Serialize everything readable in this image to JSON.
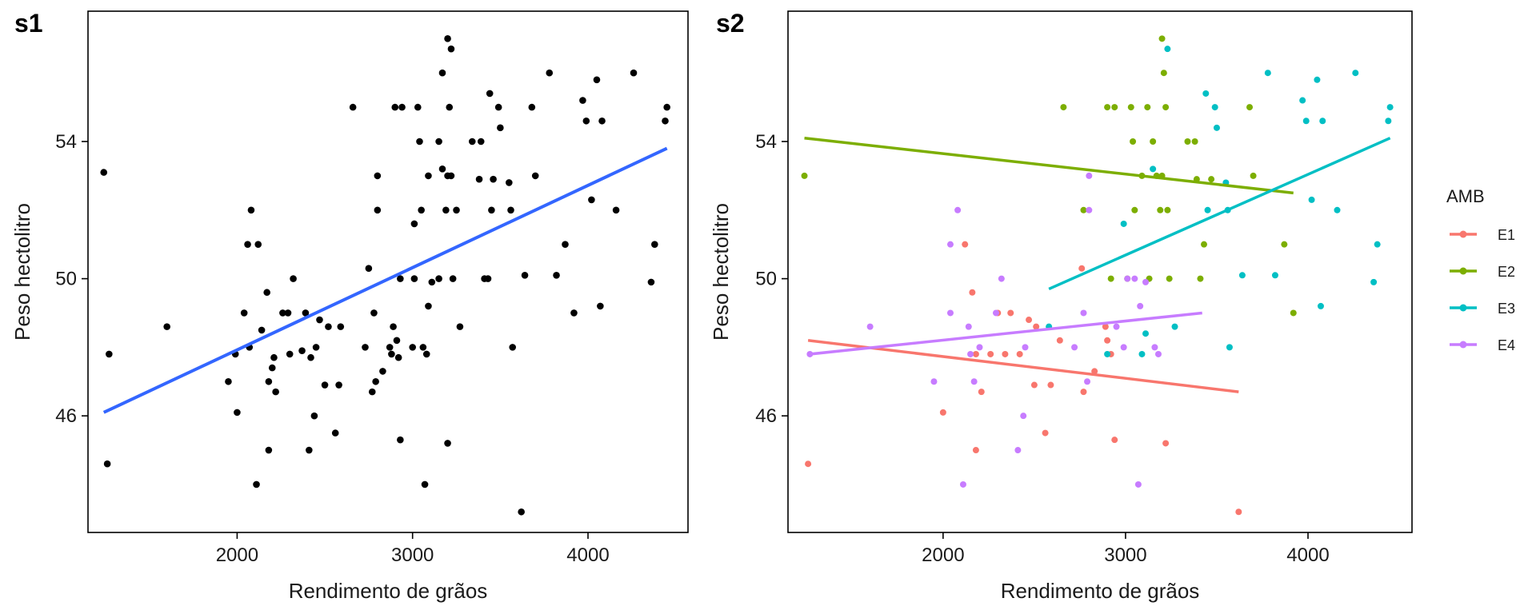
{
  "chart_data": [
    {
      "panel": "s1",
      "type": "scatter",
      "xlabel": "Rendimento de grãos",
      "ylabel": "Peso hectolitro",
      "xlim": [
        1150,
        4570
      ],
      "ylim": [
        42.6,
        57.8
      ],
      "x_ticks": [
        2000,
        3000,
        4000
      ],
      "y_ticks": [
        46,
        50,
        54
      ],
      "grid": false,
      "colors": {
        "points": "#000000",
        "line": "#3366ff"
      },
      "points": [
        [
          1240,
          53.1
        ],
        [
          1260,
          44.6
        ],
        [
          1270,
          47.8
        ],
        [
          1600,
          48.6
        ],
        [
          1950,
          47.0
        ],
        [
          1990,
          47.8
        ],
        [
          2000,
          46.1
        ],
        [
          2040,
          49.0
        ],
        [
          2060,
          51.0
        ],
        [
          2070,
          48.0
        ],
        [
          2080,
          52.0
        ],
        [
          2110,
          44.0
        ],
        [
          2120,
          51.0
        ],
        [
          2140,
          48.5
        ],
        [
          2170,
          49.6
        ],
        [
          2180,
          45.0
        ],
        [
          2180,
          47.0
        ],
        [
          2200,
          47.4
        ],
        [
          2210,
          47.7
        ],
        [
          2220,
          46.7
        ],
        [
          2260,
          49.0
        ],
        [
          2290,
          49.0
        ],
        [
          2300,
          47.8
        ],
        [
          2320,
          50.0
        ],
        [
          2370,
          47.9
        ],
        [
          2390,
          49.0
        ],
        [
          2410,
          45.0
        ],
        [
          2420,
          47.7
        ],
        [
          2440,
          46.0
        ],
        [
          2450,
          48.0
        ],
        [
          2470,
          48.8
        ],
        [
          2500,
          46.9
        ],
        [
          2520,
          48.6
        ],
        [
          2560,
          45.5
        ],
        [
          2580,
          46.9
        ],
        [
          2590,
          48.6
        ],
        [
          2660,
          55.0
        ],
        [
          2730,
          48.0
        ],
        [
          2750,
          50.3
        ],
        [
          2770,
          46.7
        ],
        [
          2780,
          49.0
        ],
        [
          2790,
          47.0
        ],
        [
          2800,
          52.0
        ],
        [
          2800,
          53.0
        ],
        [
          2830,
          47.3
        ],
        [
          2870,
          48.0
        ],
        [
          2880,
          47.8
        ],
        [
          2890,
          48.6
        ],
        [
          2900,
          55.0
        ],
        [
          2910,
          48.2
        ],
        [
          2920,
          47.7
        ],
        [
          2930,
          45.3
        ],
        [
          2930,
          50.0
        ],
        [
          2940,
          55.0
        ],
        [
          3000,
          48.0
        ],
        [
          3010,
          50.0
        ],
        [
          3010,
          51.6
        ],
        [
          3030,
          55.0
        ],
        [
          3040,
          54.0
        ],
        [
          3050,
          52.0
        ],
        [
          3060,
          48.0
        ],
        [
          3070,
          44.0
        ],
        [
          3080,
          47.8
        ],
        [
          3090,
          49.2
        ],
        [
          3090,
          53.0
        ],
        [
          3110,
          49.9
        ],
        [
          3150,
          50.0
        ],
        [
          3150,
          54.0
        ],
        [
          3170,
          53.2
        ],
        [
          3170,
          56.0
        ],
        [
          3190,
          52.0
        ],
        [
          3200,
          45.2
        ],
        [
          3200,
          53.0
        ],
        [
          3200,
          57.0
        ],
        [
          3210,
          55.0
        ],
        [
          3220,
          53.0
        ],
        [
          3220,
          56.7
        ],
        [
          3230,
          50.0
        ],
        [
          3250,
          52.0
        ],
        [
          3270,
          48.6
        ],
        [
          3340,
          54.0
        ],
        [
          3380,
          52.9
        ],
        [
          3390,
          54.0
        ],
        [
          3410,
          50.0
        ],
        [
          3430,
          50.0
        ],
        [
          3440,
          55.4
        ],
        [
          3450,
          52.0
        ],
        [
          3460,
          52.9
        ],
        [
          3490,
          55.0
        ],
        [
          3500,
          54.4
        ],
        [
          3550,
          52.8
        ],
        [
          3560,
          52.0
        ],
        [
          3570,
          48.0
        ],
        [
          3620,
          43.2
        ],
        [
          3640,
          50.1
        ],
        [
          3680,
          55.0
        ],
        [
          3700,
          53.0
        ],
        [
          3780,
          56.0
        ],
        [
          3820,
          50.1
        ],
        [
          3870,
          51.0
        ],
        [
          3920,
          49.0
        ],
        [
          3970,
          55.2
        ],
        [
          3990,
          54.6
        ],
        [
          4020,
          52.3
        ],
        [
          4050,
          55.8
        ],
        [
          4070,
          49.2
        ],
        [
          4080,
          54.6
        ],
        [
          4160,
          52.0
        ],
        [
          4260,
          56.0
        ],
        [
          4360,
          49.9
        ],
        [
          4380,
          51.0
        ],
        [
          4440,
          54.6
        ],
        [
          4450,
          55.0
        ]
      ],
      "trend_line": {
        "x": [
          1240,
          4450
        ],
        "y": [
          46.1,
          53.8
        ]
      }
    },
    {
      "panel": "s2",
      "type": "scatter",
      "xlabel": "Rendimento de grãos",
      "ylabel": "Peso hectolitro",
      "xlim": [
        1150,
        4570
      ],
      "ylim": [
        42.6,
        57.8
      ],
      "x_ticks": [
        2000,
        3000,
        4000
      ],
      "y_ticks": [
        46,
        50,
        54
      ],
      "grid": false,
      "legend": {
        "title": "AMB",
        "position": "right"
      },
      "series": [
        {
          "name": "E1",
          "color": "#f8766d",
          "points": [
            [
              1260,
              44.6
            ],
            [
              2000,
              46.1
            ],
            [
              2120,
              51.0
            ],
            [
              2160,
              49.6
            ],
            [
              2180,
              45.0
            ],
            [
              2180,
              47.8
            ],
            [
              2210,
              46.7
            ],
            [
              2260,
              47.8
            ],
            [
              2300,
              49.0
            ],
            [
              2340,
              47.8
            ],
            [
              2370,
              49.0
            ],
            [
              2420,
              47.8
            ],
            [
              2470,
              48.8
            ],
            [
              2500,
              46.9
            ],
            [
              2510,
              48.6
            ],
            [
              2560,
              45.5
            ],
            [
              2590,
              46.9
            ],
            [
              2640,
              48.2
            ],
            [
              2770,
              46.7
            ],
            [
              2760,
              50.3
            ],
            [
              2830,
              47.3
            ],
            [
              2890,
              48.6
            ],
            [
              2900,
              48.2
            ],
            [
              2920,
              47.8
            ],
            [
              2940,
              45.3
            ],
            [
              3220,
              45.2
            ],
            [
              3620,
              43.2
            ]
          ],
          "trend_line": {
            "x": [
              1260,
              3620
            ],
            "y": [
              48.2,
              46.7
            ]
          }
        },
        {
          "name": "E2",
          "color": "#7cae00",
          "points": [
            [
              1240,
              53.0
            ],
            [
              2660,
              55.0
            ],
            [
              2770,
              52.0
            ],
            [
              2900,
              55.0
            ],
            [
              2920,
              50.0
            ],
            [
              2940,
              55.0
            ],
            [
              3010,
              50.0
            ],
            [
              3030,
              55.0
            ],
            [
              3040,
              54.0
            ],
            [
              3050,
              52.0
            ],
            [
              3090,
              53.0
            ],
            [
              3120,
              55.0
            ],
            [
              3130,
              50.0
            ],
            [
              3150,
              54.0
            ],
            [
              3170,
              53.0
            ],
            [
              3190,
              52.0
            ],
            [
              3200,
              57.0
            ],
            [
              3200,
              53.0
            ],
            [
              3210,
              56.0
            ],
            [
              3220,
              55.0
            ],
            [
              3230,
              52.0
            ],
            [
              3240,
              50.0
            ],
            [
              3340,
              54.0
            ],
            [
              3380,
              54.0
            ],
            [
              3390,
              52.9
            ],
            [
              3410,
              50.0
            ],
            [
              3430,
              51.0
            ],
            [
              3470,
              52.9
            ],
            [
              3680,
              55.0
            ],
            [
              3700,
              53.0
            ],
            [
              3870,
              51.0
            ],
            [
              3920,
              49.0
            ]
          ],
          "trend_line": {
            "x": [
              1240,
              3920
            ],
            "y": [
              54.1,
              52.5
            ]
          }
        },
        {
          "name": "E3",
          "color": "#00bfc4",
          "points": [
            [
              2580,
              48.6
            ],
            [
              2900,
              47.8
            ],
            [
              2990,
              51.6
            ],
            [
              3090,
              47.8
            ],
            [
              3110,
              48.4
            ],
            [
              3150,
              53.2
            ],
            [
              3230,
              56.7
            ],
            [
              3270,
              48.6
            ],
            [
              3440,
              55.4
            ],
            [
              3450,
              52.0
            ],
            [
              3490,
              55.0
            ],
            [
              3500,
              54.4
            ],
            [
              3550,
              52.8
            ],
            [
              3560,
              52.0
            ],
            [
              3570,
              48.0
            ],
            [
              3640,
              50.1
            ],
            [
              3780,
              56.0
            ],
            [
              3820,
              50.1
            ],
            [
              3970,
              55.2
            ],
            [
              3990,
              54.6
            ],
            [
              4020,
              52.3
            ],
            [
              4050,
              55.8
            ],
            [
              4070,
              49.2
            ],
            [
              4080,
              54.6
            ],
            [
              4160,
              52.0
            ],
            [
              4260,
              56.0
            ],
            [
              4360,
              49.9
            ],
            [
              4380,
              51.0
            ],
            [
              4440,
              54.6
            ],
            [
              4450,
              55.0
            ]
          ],
          "trend_line": {
            "x": [
              2580,
              4450
            ],
            "y": [
              49.7,
              54.1
            ]
          }
        },
        {
          "name": "E4",
          "color": "#c77cff",
          "points": [
            [
              1270,
              47.8
            ],
            [
              1600,
              48.6
            ],
            [
              1950,
              47.0
            ],
            [
              2040,
              49.0
            ],
            [
              2040,
              51.0
            ],
            [
              2080,
              52.0
            ],
            [
              2110,
              44.0
            ],
            [
              2140,
              48.6
            ],
            [
              2150,
              47.8
            ],
            [
              2170,
              47.0
            ],
            [
              2200,
              48.0
            ],
            [
              2290,
              49.0
            ],
            [
              2320,
              50.0
            ],
            [
              2410,
              45.0
            ],
            [
              2440,
              46.0
            ],
            [
              2450,
              48.0
            ],
            [
              2720,
              48.0
            ],
            [
              2770,
              49.0
            ],
            [
              2790,
              47.0
            ],
            [
              2800,
              53.0
            ],
            [
              2800,
              52.0
            ],
            [
              2950,
              48.6
            ],
            [
              2990,
              48.0
            ],
            [
              3010,
              50.0
            ],
            [
              3050,
              50.0
            ],
            [
              3070,
              44.0
            ],
            [
              3080,
              49.2
            ],
            [
              3110,
              49.9
            ],
            [
              3160,
              48.0
            ],
            [
              3180,
              47.8
            ]
          ],
          "trend_line": {
            "x": [
              1270,
              3420
            ],
            "y": [
              47.8,
              49.0
            ]
          }
        }
      ]
    }
  ]
}
